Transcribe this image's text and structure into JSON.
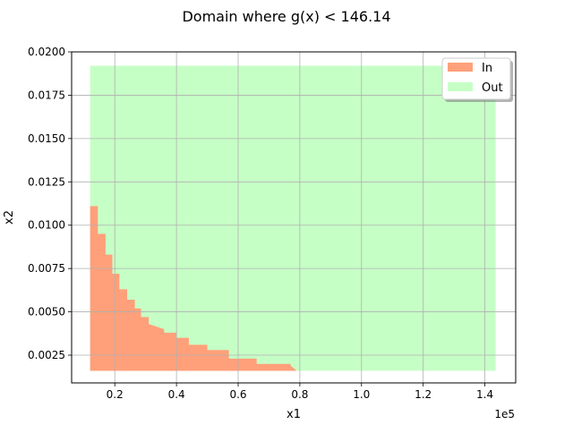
{
  "chart_data": {
    "type": "area",
    "title": "Domain where g(x) < 146.14",
    "xlabel": "x1",
    "ylabel": "x2",
    "x_offset_label": "1e5",
    "xlim": [
      0.06,
      1.5
    ],
    "ylim": [
      0.0009,
      0.02
    ],
    "x_ticks": [
      0.2,
      0.4,
      0.6,
      0.8,
      1.0,
      1.2,
      1.4
    ],
    "x_tick_labels": [
      "0.2",
      "0.4",
      "0.6",
      "0.8",
      "1.0",
      "1.2",
      "1.4"
    ],
    "y_ticks": [
      0.0025,
      0.005,
      0.0075,
      0.01,
      0.0125,
      0.015,
      0.0175,
      0.02
    ],
    "y_tick_labels": [
      "0.0025",
      "0.0050",
      "0.0075",
      "0.0100",
      "0.0125",
      "0.0150",
      "0.0175",
      "0.0200"
    ],
    "grid": true,
    "legend_placement": "top-right",
    "series": [
      {
        "name": "In",
        "color": "#ffa07a",
        "boundary": [
          [
            0.12,
            0.0111
          ],
          [
            0.145,
            0.0111
          ],
          [
            0.145,
            0.0095
          ],
          [
            0.17,
            0.0095
          ],
          [
            0.17,
            0.0083
          ],
          [
            0.192,
            0.0083
          ],
          [
            0.192,
            0.0072
          ],
          [
            0.215,
            0.0072
          ],
          [
            0.215,
            0.0063
          ],
          [
            0.24,
            0.0063
          ],
          [
            0.24,
            0.0057
          ],
          [
            0.265,
            0.0057
          ],
          [
            0.265,
            0.0052
          ],
          [
            0.285,
            0.0052
          ],
          [
            0.285,
            0.0047
          ],
          [
            0.31,
            0.0047
          ],
          [
            0.31,
            0.0043
          ],
          [
            0.36,
            0.004
          ],
          [
            0.36,
            0.0038
          ],
          [
            0.4,
            0.0038
          ],
          [
            0.4,
            0.0035
          ],
          [
            0.44,
            0.0035
          ],
          [
            0.44,
            0.0031
          ],
          [
            0.5,
            0.0031
          ],
          [
            0.5,
            0.0028
          ],
          [
            0.57,
            0.0028
          ],
          [
            0.57,
            0.0023
          ],
          [
            0.66,
            0.0023
          ],
          [
            0.66,
            0.002
          ],
          [
            0.77,
            0.002
          ],
          [
            0.77,
            0.0019
          ],
          [
            0.79,
            0.0016
          ],
          [
            0.12,
            0.0016
          ]
        ]
      },
      {
        "name": "Out",
        "color": "#c6ffc6",
        "bounds": {
          "x_min": 0.12,
          "x_max": 1.435,
          "y_min": 0.0016,
          "y_max": 0.0192
        }
      }
    ]
  }
}
